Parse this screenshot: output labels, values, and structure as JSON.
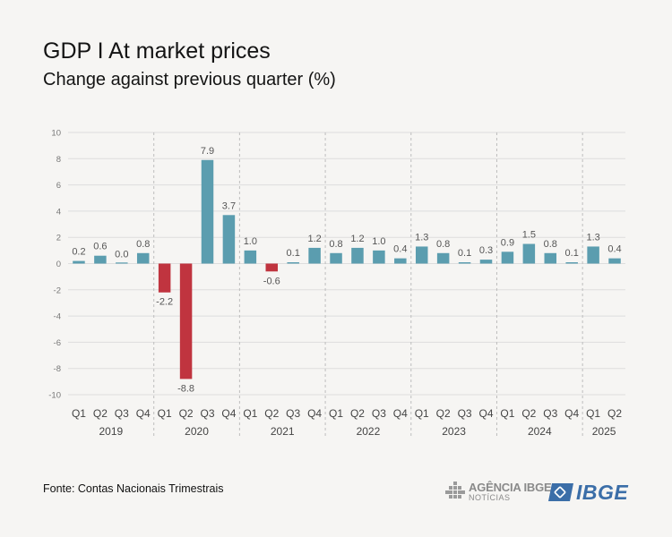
{
  "title": "GDP I At market prices",
  "subtitle": "Change against previous quarter (%)",
  "source": "Fonte: Contas Nacionais Trimestrais",
  "logos": {
    "agencia_line1": "AGÊNCIA IBGE",
    "agencia_line2": "NOTÍCIAS",
    "ibge": "IBGE"
  },
  "colors": {
    "positive": "#5b9daf",
    "negative": "#c0343f",
    "grid": "#dddddd",
    "text": "#555555"
  },
  "chart_data": {
    "type": "bar",
    "ylim": [
      -10,
      10
    ],
    "yticks": [
      10,
      8,
      6,
      4,
      2,
      0,
      -2,
      -4,
      -6,
      -8,
      -10
    ],
    "grid": true,
    "years": [
      {
        "label": "2019",
        "quarters": 4
      },
      {
        "label": "2020",
        "quarters": 4
      },
      {
        "label": "2021",
        "quarters": 4
      },
      {
        "label": "2022",
        "quarters": 4
      },
      {
        "label": "2023",
        "quarters": 4
      },
      {
        "label": "2024",
        "quarters": 4
      },
      {
        "label": "2025",
        "quarters": 2
      }
    ],
    "categories": [
      "Q1",
      "Q2",
      "Q3",
      "Q4",
      "Q1",
      "Q2",
      "Q3",
      "Q4",
      "Q1",
      "Q2",
      "Q3",
      "Q4",
      "Q1",
      "Q2",
      "Q3",
      "Q4",
      "Q1",
      "Q2",
      "Q3",
      "Q4",
      "Q1",
      "Q2",
      "Q3",
      "Q4",
      "Q1",
      "Q2"
    ],
    "values": [
      0.2,
      0.6,
      0.0,
      0.8,
      -2.2,
      -8.8,
      7.9,
      3.7,
      1.0,
      -0.6,
      0.1,
      1.2,
      0.8,
      1.2,
      1.0,
      0.4,
      1.3,
      0.8,
      0.1,
      0.3,
      0.9,
      1.5,
      0.8,
      0.1,
      1.3,
      0.4
    ],
    "labels": [
      "0.2",
      "0.6",
      "0.0",
      "0.8",
      "-2.2",
      "-8.8",
      "7.9",
      "3.7",
      "1.0",
      "-0.6",
      "0.1",
      "1.2",
      "0.8",
      "1.2",
      "1.0",
      "0.4",
      "1.3",
      "0.8",
      "0.1",
      "0.3",
      "0.9",
      "1.5",
      "0.8",
      "0.1",
      "1.3",
      "0.4"
    ]
  }
}
